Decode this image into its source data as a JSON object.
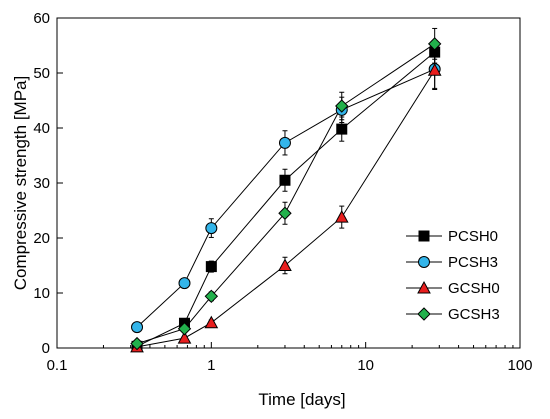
{
  "chart_data": {
    "type": "scatter",
    "xlabel": "Time [days]",
    "ylabel": "Compressive strength [MPa]",
    "xscale": "log",
    "xlim": [
      0.1,
      100
    ],
    "ylim": [
      0,
      60
    ],
    "xticks": [
      0.1,
      1,
      10,
      100
    ],
    "xtick_labels": [
      "0.1",
      "1",
      "10",
      "100"
    ],
    "yticks": [
      0,
      10,
      20,
      30,
      40,
      50,
      60
    ],
    "ytick_labels": [
      "0",
      "10",
      "20",
      "30",
      "40",
      "50",
      "60"
    ],
    "grid": false,
    "legend_position": "right",
    "x": [
      0.33,
      0.67,
      1,
      3,
      7,
      28
    ],
    "series": [
      {
        "name": "PCSH0",
        "marker": "square",
        "color": "#000000",
        "values": [
          0.3,
          4.5,
          14.8,
          30.5,
          39.8,
          53.8
        ],
        "errors": [
          0.3,
          0.5,
          1.0,
          2.0,
          2.2,
          2.0
        ]
      },
      {
        "name": "PCSH3",
        "marker": "circle",
        "color": "#33b5ea",
        "values": [
          3.8,
          11.8,
          21.8,
          37.3,
          43.3,
          50.7
        ],
        "errors": [
          0.4,
          0.7,
          1.7,
          2.2,
          2.3,
          3.5
        ]
      },
      {
        "name": "GCSH0",
        "marker": "triangle",
        "color": "#e81e1e",
        "values": [
          0.2,
          1.8,
          4.6,
          15.0,
          23.8,
          50.5
        ],
        "errors": [
          0.2,
          0.3,
          0.5,
          1.5,
          2.0,
          3.5
        ]
      },
      {
        "name": "GCSH3",
        "marker": "diamond",
        "color": "#22b14c",
        "values": [
          0.8,
          3.5,
          9.4,
          24.5,
          44.0,
          55.3
        ],
        "errors": [
          0.2,
          0.4,
          0.8,
          2.0,
          2.5,
          2.8
        ]
      }
    ]
  }
}
